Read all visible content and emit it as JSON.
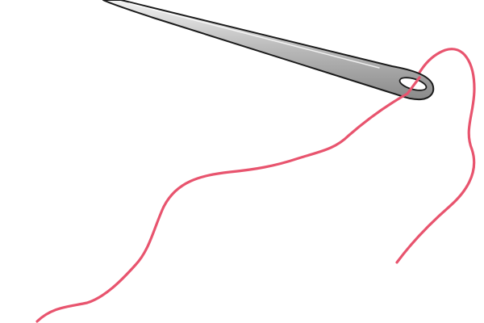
{
  "scene": {
    "subject_icons": [
      "needle-icon",
      "thread-icon"
    ],
    "colors": {
      "background": "#ffffff",
      "needle_fill_light": "#f2f2f2",
      "needle_fill_mid": "#bdbdbd",
      "needle_fill_dark": "#8a8a8a",
      "needle_outline": "#1a1a1a",
      "thread": "#e8546e"
    }
  }
}
